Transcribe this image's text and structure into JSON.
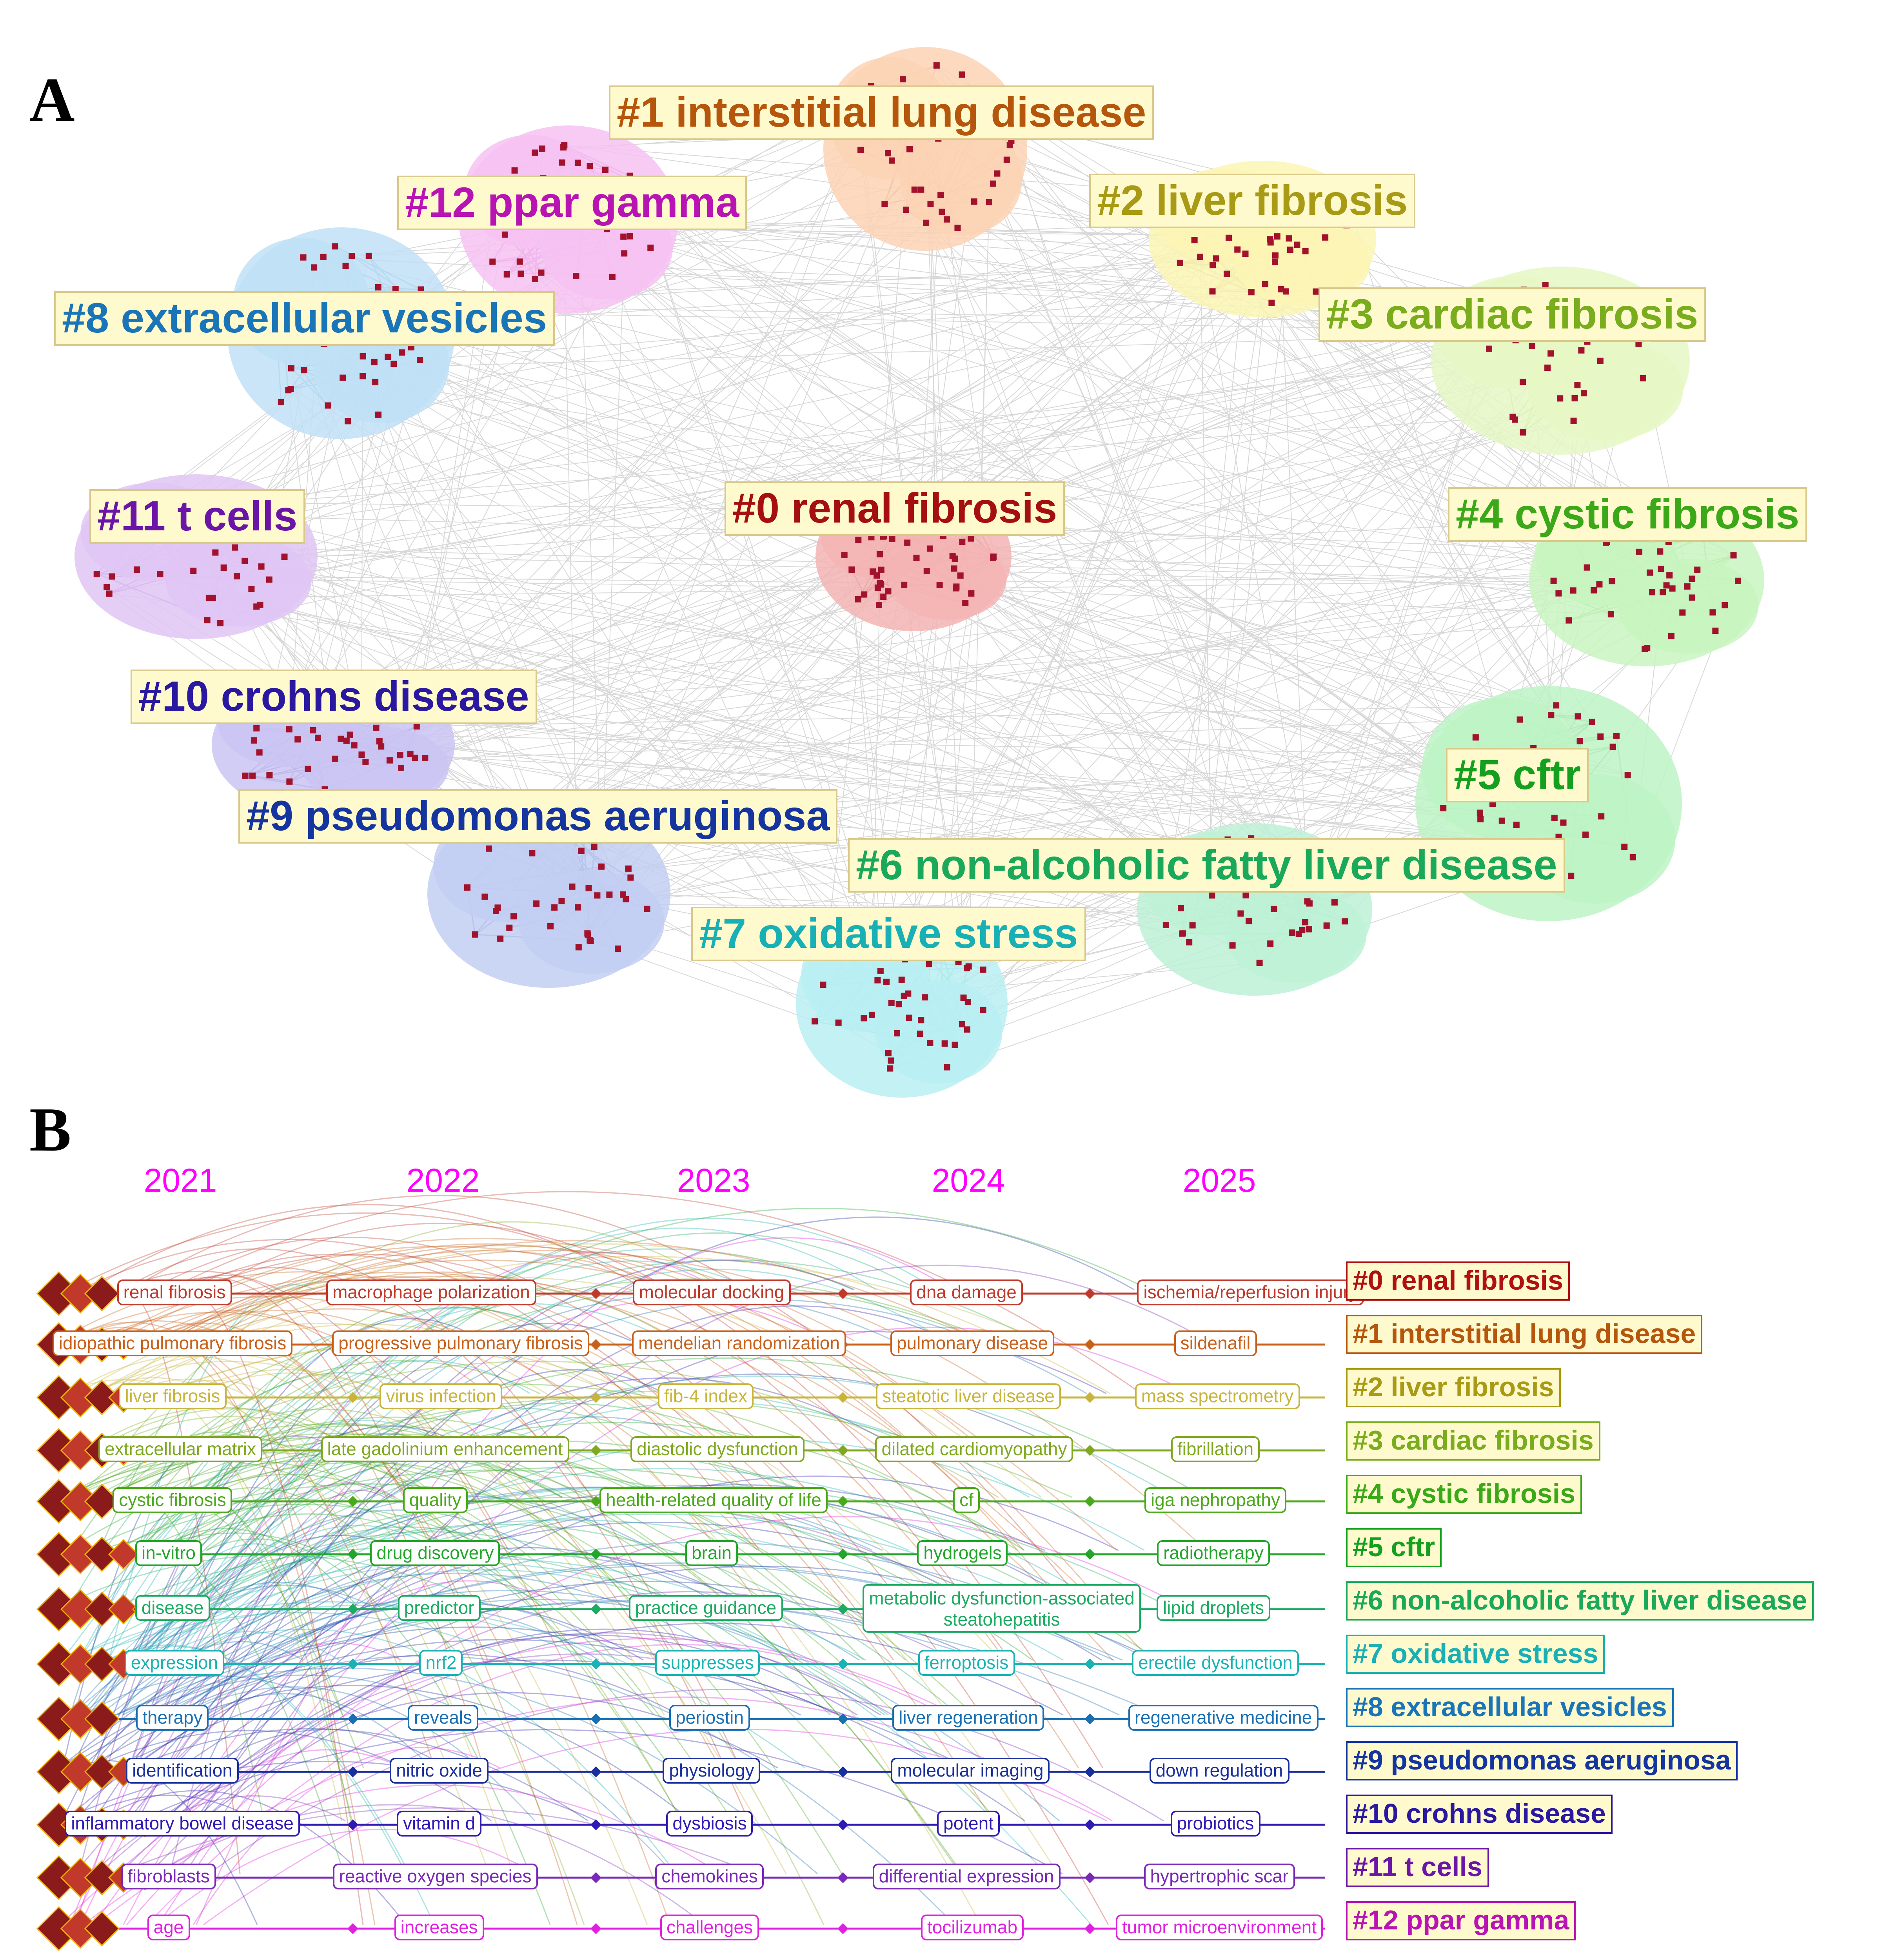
{
  "panel_a": {
    "letter": "A",
    "clusters": [
      {
        "id": "c0",
        "label": "#0 renal fibrosis",
        "color": "#a50f0f",
        "halo": "#f4b4b4"
      },
      {
        "id": "c1",
        "label": "#1 interstitial lung disease",
        "color": "#b5560c",
        "halo": "#fcd2b4"
      },
      {
        "id": "c2",
        "label": "#2 liver fibrosis",
        "color": "#a89a14",
        "halo": "#fbf4b4"
      },
      {
        "id": "c3",
        "label": "#3 cardiac fibrosis",
        "color": "#7aad1e",
        "halo": "#e6f8c4"
      },
      {
        "id": "c4",
        "label": "#4 cystic fibrosis",
        "color": "#3aa818",
        "halo": "#c8f5c0"
      },
      {
        "id": "c5",
        "label": "#5 cftr",
        "color": "#14a01e",
        "halo": "#bdf3c4"
      },
      {
        "id": "c6",
        "label": "#6 non-alcoholic fatty liver disease",
        "color": "#1aa85a",
        "halo": "#bdf1d6"
      },
      {
        "id": "c7",
        "label": "#7 oxidative stress",
        "color": "#18b0b4",
        "halo": "#b9eef2"
      },
      {
        "id": "c8",
        "label": "#8 extracellular vesicles",
        "color": "#1a74b8",
        "halo": "#bfe0f6"
      },
      {
        "id": "c9",
        "label": "#9 pseudomonas aeruginosa",
        "color": "#1434a0",
        "halo": "#c2cef2"
      },
      {
        "id": "c10",
        "label": "#10 crohns disease",
        "color": "#2a18a0",
        "halo": "#cac4f2"
      },
      {
        "id": "c11",
        "label": "#11 t cells",
        "color": "#6a14a8",
        "halo": "#e0c6f4"
      },
      {
        "id": "c12",
        "label": "#12 ppar gamma",
        "color": "#b814b4",
        "halo": "#f6c2f2"
      }
    ]
  },
  "panel_b": {
    "letter": "B",
    "years": [
      "2021",
      "2022",
      "2023",
      "2024",
      "2025"
    ],
    "lines": [
      {
        "id": "0",
        "color": "#c0392b",
        "keywords": [
          "renal fibrosis",
          "macrophage polarization",
          "molecular docking",
          "dna damage",
          "ischemia/reperfusion injury"
        ]
      },
      {
        "id": "1",
        "color": "#c8601a",
        "keywords": [
          "idiopathic pulmonary fibrosis",
          "progressive pulmonary fibrosis",
          "mendelian randomization",
          "pulmonary disease",
          "sildenafil"
        ]
      },
      {
        "id": "2",
        "color": "#c9b43a",
        "keywords": [
          "liver fibrosis",
          "virus infection",
          "fib-4 index",
          "steatotic liver disease",
          "mass spectrometry"
        ]
      },
      {
        "id": "3",
        "color": "#7fa81e",
        "keywords": [
          "extracellular matrix",
          "late gadolinium enhancement",
          "diastolic dysfunction",
          "dilated cardiomyopathy",
          "fibrillation"
        ]
      },
      {
        "id": "4",
        "color": "#4aa91a",
        "keywords": [
          "cystic fibrosis",
          "quality",
          "health-related quality of life",
          "cf",
          "iga nephropathy"
        ]
      },
      {
        "id": "5",
        "color": "#22a52a",
        "keywords": [
          "in-vitro",
          "drug discovery",
          "brain",
          "hydrogels",
          "radiotherapy"
        ]
      },
      {
        "id": "6",
        "color": "#1cab62",
        "keywords": [
          "disease",
          "predictor",
          "practice guidance",
          "metabolic dysfunction-associated",
          "steatohepatitis",
          "lipid droplets"
        ]
      },
      {
        "id": "7",
        "color": "#1ab3b3",
        "keywords": [
          "expression",
          "nrf2",
          "suppresses",
          "ferroptosis",
          "erectile dysfunction"
        ]
      },
      {
        "id": "8",
        "color": "#1a6fb3",
        "keywords": [
          "therapy",
          "reveals",
          "periostin",
          "liver regeneration",
          "regenerative medicine"
        ]
      },
      {
        "id": "9",
        "color": "#1a2f9e",
        "keywords": [
          "identification",
          "nitric oxide",
          "physiology",
          "molecular imaging",
          "down regulation"
        ]
      },
      {
        "id": "10",
        "color": "#2f1ab3",
        "keywords": [
          "inflammatory bowel disease",
          "vitamin d",
          "dysbiosis",
          "potent",
          "probiotics"
        ]
      },
      {
        "id": "11",
        "color": "#7a28b8",
        "keywords": [
          "fibroblasts",
          "reactive oxygen species",
          "chemokines",
          "differential expression",
          "hypertrophic scar"
        ]
      },
      {
        "id": "12",
        "color": "#e020e0",
        "keywords": [
          "age",
          "increases",
          "challenges",
          "tocilizumab",
          "tumor microenvironment"
        ]
      }
    ],
    "legend": [
      {
        "label": "#0 renal fibrosis",
        "color": "#b01010"
      },
      {
        "label": "#1 interstitial lung disease",
        "color": "#b5560c"
      },
      {
        "label": "#2 liver fibrosis",
        "color": "#a89a14"
      },
      {
        "label": "#3 cardiac fibrosis",
        "color": "#7aad1e"
      },
      {
        "label": "#4 cystic fibrosis",
        "color": "#3aa818"
      },
      {
        "label": "#5 cftr",
        "color": "#14a01e"
      },
      {
        "label": "#6 non-alcoholic fatty liver disease",
        "color": "#1aa85a"
      },
      {
        "label": "#7 oxidative stress",
        "color": "#18b0b4"
      },
      {
        "label": "#8 extracellular vesicles",
        "color": "#1a74b8"
      },
      {
        "label": "#9 pseudomonas aeruginosa",
        "color": "#1434a0"
      },
      {
        "label": "#10 crohns disease",
        "color": "#2a18a0"
      },
      {
        "label": "#11 t cells",
        "color": "#6a14a8"
      },
      {
        "label": "#12 ppar gamma",
        "color": "#b814b4"
      }
    ]
  }
}
